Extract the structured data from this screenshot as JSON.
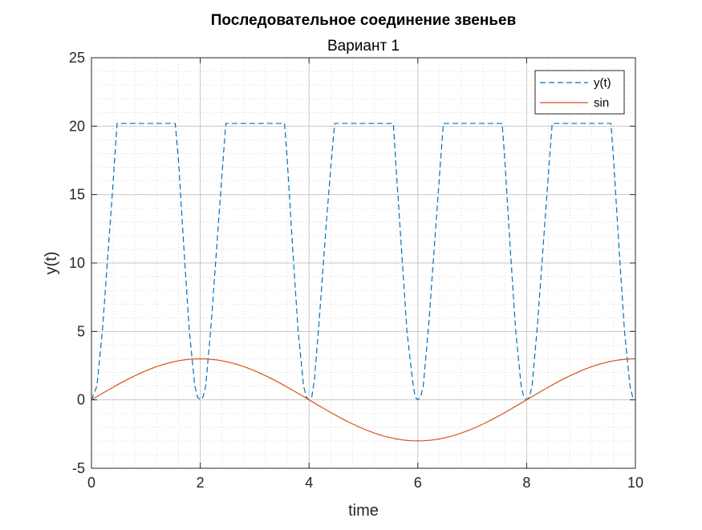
{
  "chart_data": {
    "type": "line",
    "title": "Последовательное соединение звеньев",
    "subtitle": "Вариант 1",
    "xlabel": "time",
    "ylabel": "y(t)",
    "xlim": [
      0,
      10
    ],
    "ylim": [
      -5,
      25
    ],
    "xticks": [
      "0",
      "2",
      "4",
      "6",
      "8",
      "10"
    ],
    "yticks": [
      "-5",
      "0",
      "5",
      "10",
      "15",
      "20",
      "25"
    ],
    "grid": true,
    "minor_grid": true,
    "legend_position": "top-right",
    "series": [
      {
        "name": "y(t)",
        "color": "#0072BD",
        "style": "dashed",
        "x": [
          0,
          0.1,
          0.2,
          0.3,
          0.4,
          0.47,
          0.6,
          0.8,
          1.0,
          1.2,
          1.4,
          1.54,
          1.6,
          1.7,
          1.8,
          1.9,
          1.95,
          2.0,
          2.05,
          2.1,
          2.2,
          2.3,
          2.4,
          2.47,
          2.6,
          2.8,
          3.0,
          3.2,
          3.4,
          3.55,
          3.6,
          3.7,
          3.8,
          3.9,
          3.95,
          4.0,
          4.05,
          4.1,
          4.2,
          4.3,
          4.4,
          4.47,
          4.6,
          4.8,
          5.0,
          5.2,
          5.4,
          5.55,
          5.6,
          5.7,
          5.8,
          5.9,
          5.95,
          6.0,
          6.05,
          6.1,
          6.2,
          6.3,
          6.4,
          6.47,
          6.6,
          6.8,
          7.0,
          7.2,
          7.4,
          7.55,
          7.6,
          7.7,
          7.8,
          7.9,
          7.95,
          8.0,
          8.05,
          8.1,
          8.2,
          8.3,
          8.4,
          8.47,
          8.6,
          8.8,
          9.0,
          9.2,
          9.4,
          9.55,
          9.6,
          9.7,
          9.8,
          9.9,
          9.95,
          10.0
        ],
        "y": [
          0,
          1.0,
          5.0,
          10.5,
          16.0,
          20.2,
          20.2,
          20.2,
          20.2,
          20.2,
          20.2,
          20.2,
          17.5,
          11.0,
          5.0,
          1.0,
          0.2,
          0,
          0.2,
          1.0,
          5.5,
          11.0,
          16.5,
          20.2,
          20.2,
          20.2,
          20.2,
          20.2,
          20.2,
          20.2,
          17.5,
          11.0,
          5.0,
          1.0,
          0.2,
          0,
          0.2,
          1.5,
          6.5,
          12.0,
          17.0,
          20.2,
          20.2,
          20.2,
          20.2,
          20.2,
          20.2,
          20.2,
          17.0,
          11.0,
          5.0,
          1.5,
          0.2,
          0,
          0.2,
          1.0,
          5.5,
          11.0,
          16.5,
          20.2,
          20.2,
          20.2,
          20.2,
          20.2,
          20.2,
          20.2,
          17.5,
          11.0,
          5.0,
          1.0,
          0.2,
          0,
          0.2,
          1.0,
          5.5,
          11.0,
          16.5,
          20.2,
          20.2,
          20.2,
          20.2,
          20.2,
          20.2,
          20.2,
          17.5,
          11.0,
          5.0,
          1.0,
          0.2,
          0
        ]
      },
      {
        "name": "sin",
        "color": "#D95319",
        "style": "solid",
        "amplitude": 3,
        "period": 8,
        "x_step": 0.1
      }
    ]
  }
}
